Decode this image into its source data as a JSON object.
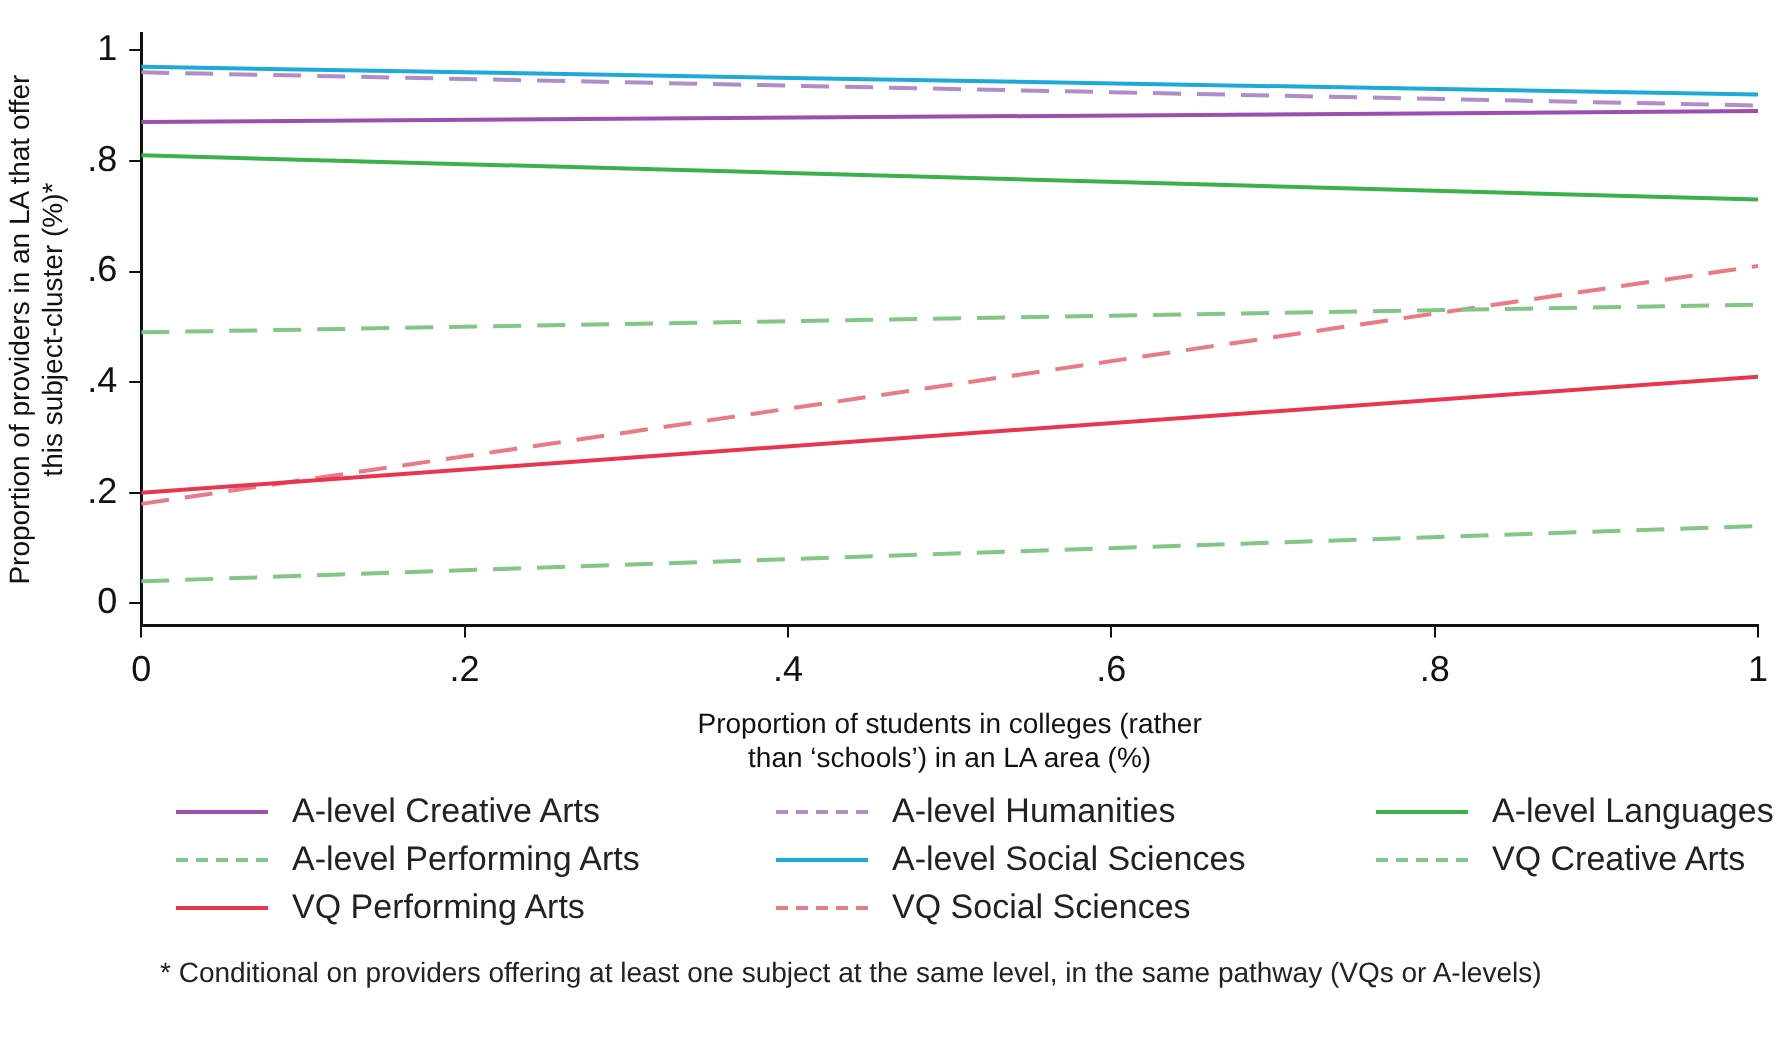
{
  "chart_data": {
    "type": "line",
    "xlabel": "Proportion of students in colleges (rather than ‘schools’) in an LA area (%)",
    "ylabel": "Proportion of providers in an LA that offer this subject-cluster (%)*",
    "x": [
      0,
      1
    ],
    "xlim": [
      0,
      1
    ],
    "xticks": [
      0,
      {
        "value": 0.2,
        "label": ".2"
      },
      {
        "value": 0.4,
        "label": ".4"
      },
      {
        "value": 0.6,
        "label": ".6"
      },
      {
        "value": 0.8,
        "label": ".8"
      },
      1
    ],
    "ylim": [
      -0.04,
      1.03
    ],
    "yticks": [
      0,
      {
        "value": 0.2,
        "label": ".2"
      },
      {
        "value": 0.4,
        "label": ".4"
      },
      {
        "value": 0.6,
        "label": ".6"
      },
      {
        "value": 0.8,
        "label": ".8"
      },
      1
    ],
    "grid": false,
    "legend": "bottom",
    "marker": "none",
    "series": [
      {
        "name": "A-level Creative Arts",
        "color": "#9b4fb0",
        "line_style": "solid",
        "values": [
          0.87,
          0.89
        ]
      },
      {
        "name": "A-level Humanities",
        "color": "#b08cc8",
        "line_style": "dashed",
        "values": [
          0.96,
          0.9
        ]
      },
      {
        "name": "A-level Languages",
        "color": "#3cb04b",
        "line_style": "solid",
        "values": [
          0.81,
          0.73
        ]
      },
      {
        "name": "A-level Performing Arts",
        "color": "#82c785",
        "line_style": "dashed",
        "values": [
          0.49,
          0.54
        ]
      },
      {
        "name": "A-level Social Sciences",
        "color": "#1eaad8",
        "line_style": "solid",
        "values": [
          0.97,
          0.92
        ]
      },
      {
        "name": "VQ Creative Arts",
        "color": "#82c785",
        "line_style": "dashed",
        "values": [
          0.04,
          0.14
        ]
      },
      {
        "name": "VQ Performing Arts",
        "color": "#ea3550",
        "line_style": "solid",
        "values": [
          0.2,
          0.41
        ]
      },
      {
        "name": "VQ Social Sciences",
        "color": "#ea7a84",
        "line_style": "dashed",
        "values": [
          0.18,
          0.61
        ]
      }
    ],
    "annotations": [
      "* Conditional on providers offering at least one subject at the same level, in the same pathway (VQs or A-levels)"
    ]
  }
}
